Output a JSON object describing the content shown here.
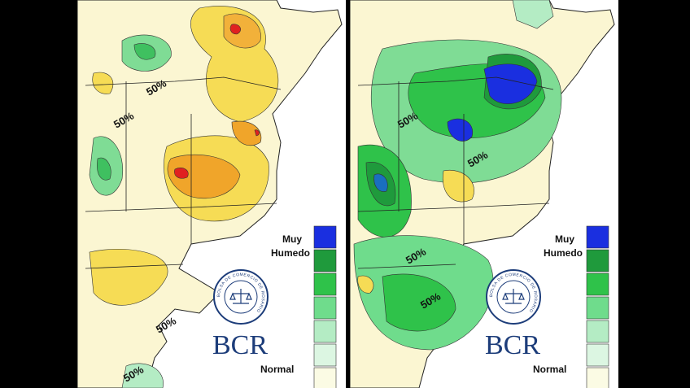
{
  "panels": [
    {
      "legend": {
        "top": "Muy",
        "top2": "Humedo",
        "bottom": "Normal",
        "colors": [
          "#1a2fe0",
          "#1f9a3c",
          "#2fc24a",
          "#6fdc8c",
          "#b4ecc4",
          "#dcf6e2",
          "#fbfbe4"
        ]
      },
      "brand": "BCR",
      "logo_text": "BOLSA DE COMERCIO DE ROSARIO",
      "contour_labels": [
        "50%",
        "50%",
        "50%",
        "50%"
      ]
    },
    {
      "legend": {
        "top": "Muy",
        "top2": "Humedo",
        "bottom": "Normal",
        "colors": [
          "#1a2fe0",
          "#1f9a3c",
          "#2fc24a",
          "#6fdc8c",
          "#b4ecc4",
          "#dcf6e2",
          "#fbfbe4"
        ]
      },
      "brand": "BCR",
      "logo_text": "BOLSA DE COMERCIO DE ROSARIO",
      "contour_labels": [
        "50%",
        "50%",
        "50%",
        "50%"
      ]
    }
  ]
}
